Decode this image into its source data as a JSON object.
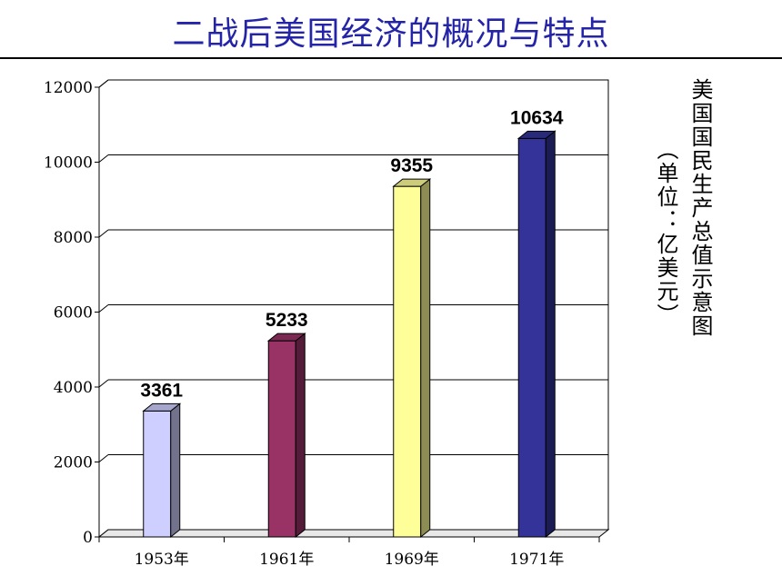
{
  "header": {
    "title": "二战后美国经济的概况与特点"
  },
  "caption": {
    "title": "美国国民生产总值示意图",
    "unit": "（单位：亿美元）"
  },
  "chart_data": {
    "type": "bar",
    "categories": [
      "1953年",
      "1961年",
      "1969年",
      "1971年"
    ],
    "values": [
      3361,
      5233,
      9355,
      10634
    ],
    "value_labels": [
      "3361",
      "5233",
      "9355",
      "10634"
    ],
    "colors": [
      "#cfcfff",
      "#993366",
      "#ffff99",
      "#333399"
    ],
    "yticks": [
      "0",
      "2000",
      "4000",
      "6000",
      "8000",
      "10000",
      "12000"
    ],
    "ylim": [
      0,
      12000
    ],
    "grid": true,
    "title": "美国国民生产总值示意图",
    "ylabel": "（单位：亿美元）",
    "xlabel": ""
  }
}
